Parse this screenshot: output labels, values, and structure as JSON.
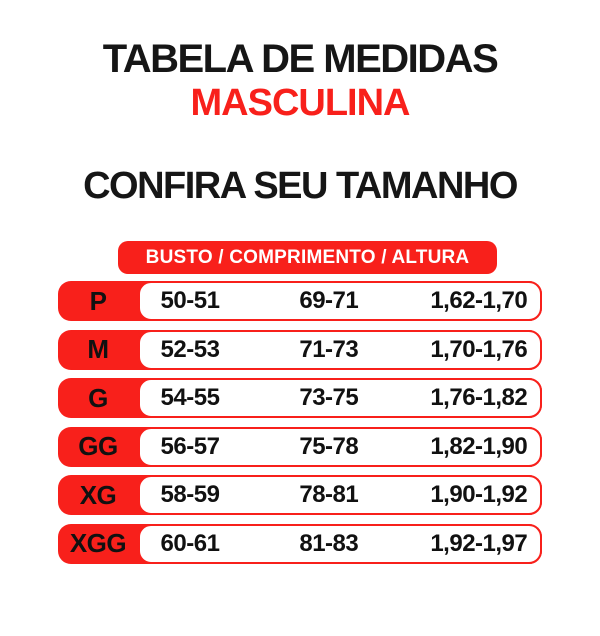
{
  "title": {
    "line1": "TABELA DE MEDIDAS",
    "line2": "MASCULINA"
  },
  "subtitle": "CONFIRA SEU TAMANHO",
  "table": {
    "header": "BUSTO / COMPRIMENTO / ALTURA",
    "columns": [
      "BUSTO",
      "COMPRIMENTO",
      "ALTURA"
    ],
    "rows": [
      {
        "size": "P",
        "busto": "50-51",
        "comprimento": "69-71",
        "altura": "1,62-1,70"
      },
      {
        "size": "M",
        "busto": "52-53",
        "comprimento": "71-73",
        "altura": "1,70-1,76"
      },
      {
        "size": "G",
        "busto": "54-55",
        "comprimento": "73-75",
        "altura": "1,76-1,82"
      },
      {
        "size": "GG",
        "busto": "56-57",
        "comprimento": "75-78",
        "altura": "1,82-1,90"
      },
      {
        "size": "XG",
        "busto": "58-59",
        "comprimento": "78-81",
        "altura": "1,90-1,92"
      },
      {
        "size": "XGG",
        "busto": "60-61",
        "comprimento": "81-83",
        "altura": "1,92-1,97"
      }
    ]
  },
  "colors": {
    "accent_red": "#f8201b",
    "text_black": "#161616",
    "white": "#ffffff"
  }
}
